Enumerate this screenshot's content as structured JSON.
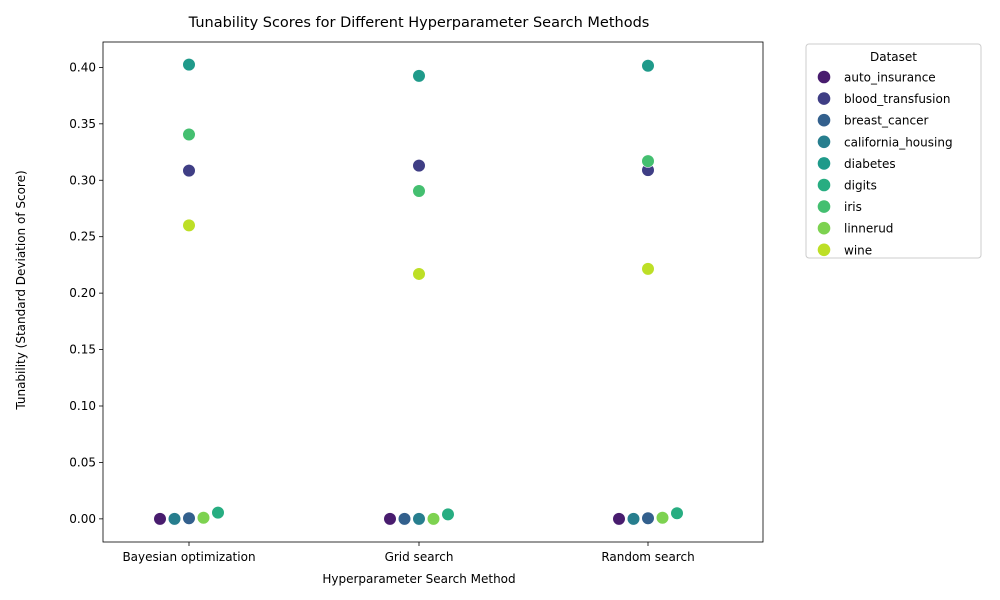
{
  "chart_data": {
    "type": "scatter",
    "title": "Tunability Scores for Different Hyperparameter Search Methods",
    "xlabel": "Hyperparameter Search Method",
    "ylabel": "Tunability (Standard Deviation of Score)",
    "categories": [
      "Bayesian optimization",
      "Grid search",
      "Random search"
    ],
    "ylim": [
      -0.0205,
      0.4225
    ],
    "yticks": [
      0.0,
      0.05,
      0.1,
      0.15,
      0.2,
      0.25,
      0.3,
      0.35,
      0.4
    ],
    "ytick_labels": [
      "0.00",
      "0.05",
      "0.10",
      "0.15",
      "0.20",
      "0.25",
      "0.30",
      "0.35",
      "0.40"
    ],
    "grid": false,
    "legend": {
      "title": "Dataset",
      "position": "outside-right"
    },
    "series": [
      {
        "name": "auto_insurance",
        "color": "#481c6e",
        "values": [
          0.0,
          0.0,
          0.0
        ]
      },
      {
        "name": "blood_transfusion",
        "color": "#3f3e85",
        "values": [
          0.3085,
          0.313,
          0.309
        ]
      },
      {
        "name": "breast_cancer",
        "color": "#33608d",
        "values": [
          0.0005,
          0.0,
          0.0005
        ]
      },
      {
        "name": "california_housing",
        "color": "#277e8e",
        "values": [
          0.0,
          0.0,
          0.0
        ]
      },
      {
        "name": "diabetes",
        "color": "#1f9a8a",
        "values": [
          0.4025,
          0.3925,
          0.4015
        ]
      },
      {
        "name": "digits",
        "color": "#27ad81",
        "values": [
          0.0055,
          0.004,
          0.005
        ]
      },
      {
        "name": "iris",
        "color": "#44bf70",
        "values": [
          0.3405,
          0.2905,
          0.317
        ]
      },
      {
        "name": "linnerud",
        "color": "#7dd250",
        "values": [
          0.001,
          0.0,
          0.001
        ]
      },
      {
        "name": "wine",
        "color": "#bddf26",
        "values": [
          0.26,
          0.217,
          0.2215
        ]
      }
    ]
  }
}
